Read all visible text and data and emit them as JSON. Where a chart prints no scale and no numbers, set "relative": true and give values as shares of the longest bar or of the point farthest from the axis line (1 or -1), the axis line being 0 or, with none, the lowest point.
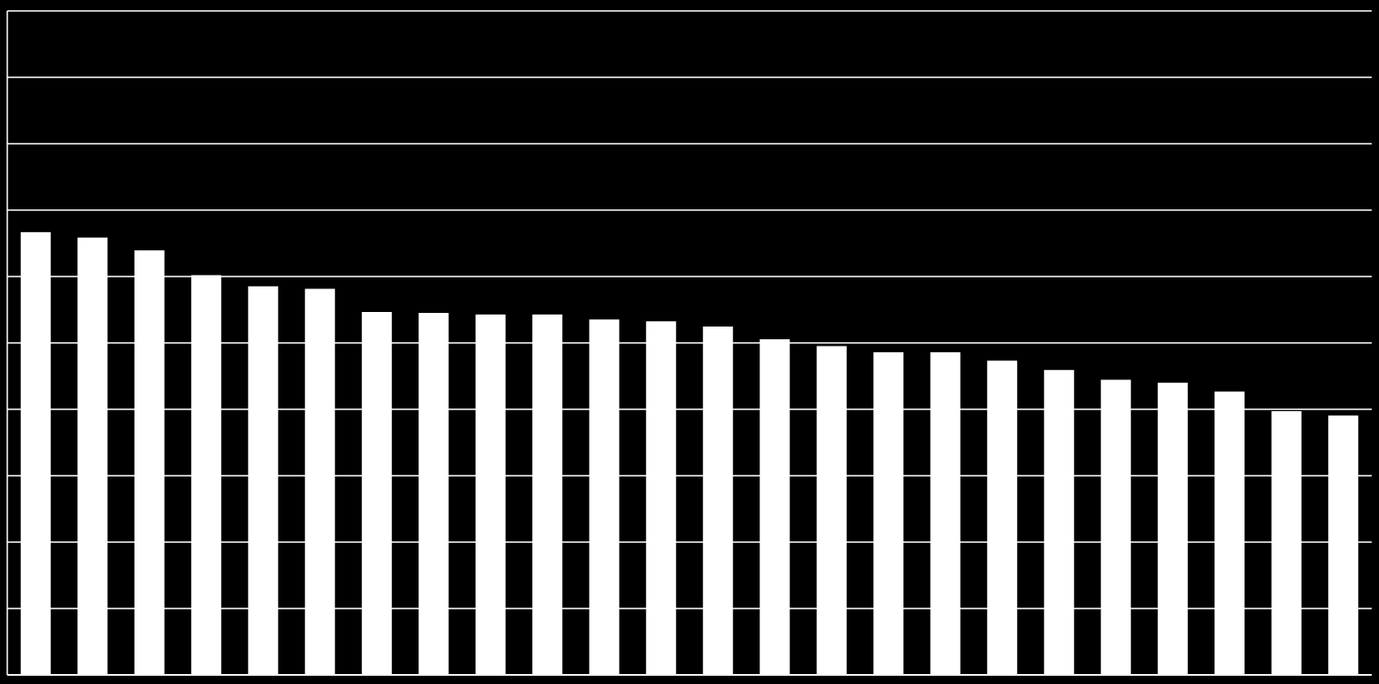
{
  "chart_data": {
    "type": "bar",
    "relative": true,
    "grid": "y",
    "color": "#ffffff",
    "categories": [
      null,
      null,
      null,
      null,
      null,
      null,
      null,
      null,
      null,
      null,
      null,
      null,
      null,
      null,
      null,
      null,
      null,
      null,
      null,
      null,
      null,
      null,
      null,
      null
    ],
    "values": [
      1,
      0.988,
      0.959,
      0.903,
      0.878,
      0.872,
      0.82,
      0.818,
      0.814,
      0.814,
      0.803,
      0.799,
      0.787,
      0.758,
      0.743,
      0.729,
      0.729,
      0.71,
      0.689,
      0.667,
      0.66,
      0.64,
      0.596,
      0.586
    ]
  }
}
